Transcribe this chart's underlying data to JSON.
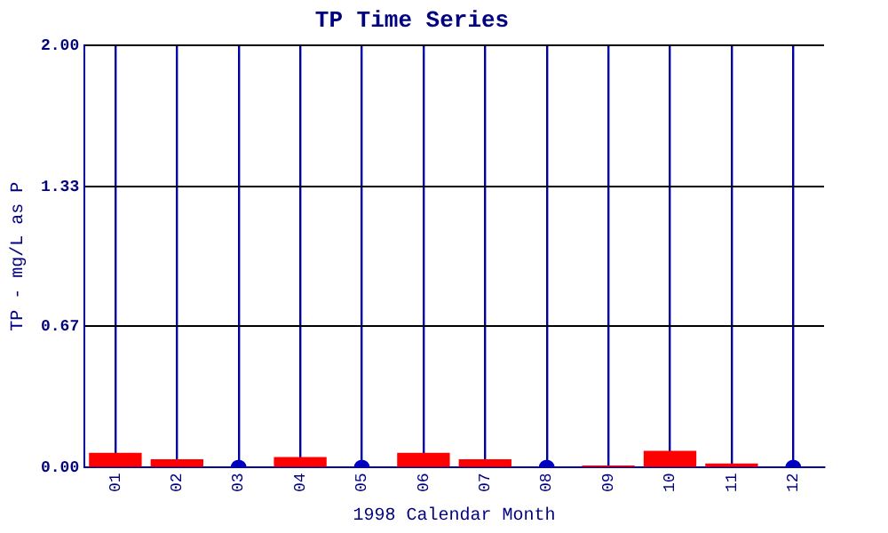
{
  "chart_data": {
    "type": "bar",
    "title": "TP Time Series",
    "xlabel": "1998 Calendar Month",
    "ylabel": "TP - mg/L as P",
    "categories": [
      "01",
      "02",
      "03",
      "04",
      "05",
      "06",
      "07",
      "08",
      "09",
      "10",
      "11",
      "12"
    ],
    "series": [
      {
        "color": "#ff0000",
        "values": [
          0.07,
          0.04,
          null,
          0.05,
          null,
          0.07,
          0.04,
          null,
          0.01,
          0.08,
          0.02,
          null
        ]
      },
      {
        "type": "scatter",
        "color": "#0000c0",
        "marker": "circle",
        "x": [
          "03",
          "05",
          "08",
          "12"
        ],
        "values": [
          0,
          0,
          0,
          0
        ]
      }
    ],
    "ylim": [
      0,
      2
    ],
    "yticks": [
      {
        "value": 0,
        "label": "0.00"
      },
      {
        "value": 0.67,
        "label": "0.67"
      },
      {
        "value": 1.33,
        "label": "1.33"
      },
      {
        "value": 2,
        "label": "2.00"
      }
    ],
    "grid": true,
    "legend": false
  }
}
